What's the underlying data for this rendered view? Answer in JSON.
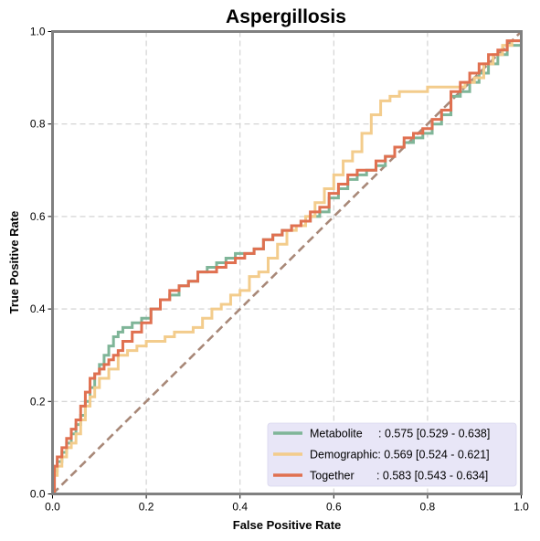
{
  "chart_data": {
    "type": "line",
    "title": "Aspergillosis",
    "xlabel": "False Positive Rate",
    "ylabel": "True Positive Rate",
    "xlim": [
      0,
      1
    ],
    "ylim": [
      0,
      1
    ],
    "xticks": [
      "0.0",
      "0.2",
      "0.4",
      "0.6",
      "0.8",
      "1.0"
    ],
    "yticks": [
      "0.0",
      "0.2",
      "0.4",
      "0.6",
      "0.8",
      "1.0"
    ],
    "grid": true,
    "legend_position": "bottom-right",
    "series": [
      {
        "name": "Metabolite",
        "legend_label": "Metabolite     : 0.575 [0.529 - 0.638]",
        "color": "#7fb598",
        "x": [
          0,
          0.004,
          0.01,
          0.02,
          0.03,
          0.04,
          0.05,
          0.06,
          0.07,
          0.08,
          0.09,
          0.1,
          0.11,
          0.12,
          0.13,
          0.14,
          0.15,
          0.17,
          0.19,
          0.21,
          0.23,
          0.25,
          0.27,
          0.29,
          0.31,
          0.33,
          0.35,
          0.37,
          0.39,
          0.41,
          0.43,
          0.45,
          0.47,
          0.49,
          0.51,
          0.53,
          0.55,
          0.57,
          0.59,
          0.61,
          0.63,
          0.65,
          0.67,
          0.69,
          0.71,
          0.73,
          0.75,
          0.77,
          0.79,
          0.81,
          0.83,
          0.85,
          0.87,
          0.89,
          0.91,
          0.93,
          0.95,
          0.97,
          1.0
        ],
        "y": [
          0,
          0.05,
          0.07,
          0.09,
          0.11,
          0.13,
          0.15,
          0.17,
          0.2,
          0.23,
          0.26,
          0.28,
          0.3,
          0.32,
          0.34,
          0.35,
          0.36,
          0.37,
          0.38,
          0.4,
          0.42,
          0.43,
          0.45,
          0.46,
          0.48,
          0.49,
          0.5,
          0.51,
          0.52,
          0.52,
          0.53,
          0.55,
          0.56,
          0.57,
          0.58,
          0.59,
          0.6,
          0.61,
          0.64,
          0.66,
          0.68,
          0.69,
          0.7,
          0.71,
          0.73,
          0.75,
          0.76,
          0.77,
          0.78,
          0.8,
          0.82,
          0.86,
          0.87,
          0.89,
          0.91,
          0.93,
          0.95,
          0.97,
          1.0
        ]
      },
      {
        "name": "Demographic",
        "legend_label": "Demographic: 0.569 [0.524 - 0.621]",
        "color": "#f3cc8c",
        "x": [
          0,
          0.004,
          0.01,
          0.02,
          0.03,
          0.04,
          0.05,
          0.06,
          0.07,
          0.08,
          0.09,
          0.1,
          0.12,
          0.14,
          0.16,
          0.18,
          0.2,
          0.22,
          0.24,
          0.26,
          0.28,
          0.3,
          0.32,
          0.34,
          0.36,
          0.38,
          0.4,
          0.42,
          0.44,
          0.46,
          0.48,
          0.5,
          0.52,
          0.54,
          0.56,
          0.58,
          0.6,
          0.62,
          0.64,
          0.66,
          0.68,
          0.7,
          0.72,
          0.74,
          0.76,
          0.78,
          0.8,
          0.82,
          0.84,
          0.86,
          0.88,
          0.9,
          0.92,
          0.94,
          0.96,
          0.98,
          1.0
        ],
        "y": [
          0,
          0.04,
          0.06,
          0.08,
          0.1,
          0.11,
          0.13,
          0.16,
          0.19,
          0.21,
          0.23,
          0.25,
          0.27,
          0.3,
          0.31,
          0.32,
          0.33,
          0.33,
          0.34,
          0.35,
          0.35,
          0.36,
          0.38,
          0.4,
          0.41,
          0.43,
          0.44,
          0.47,
          0.48,
          0.51,
          0.54,
          0.57,
          0.58,
          0.6,
          0.63,
          0.66,
          0.69,
          0.72,
          0.74,
          0.78,
          0.82,
          0.85,
          0.86,
          0.87,
          0.87,
          0.87,
          0.88,
          0.88,
          0.88,
          0.88,
          0.89,
          0.9,
          0.93,
          0.95,
          0.97,
          0.98,
          1.0
        ]
      },
      {
        "name": "Together",
        "legend_label": "Together       : 0.583 [0.543 - 0.634]",
        "color": "#e07050",
        "x": [
          0,
          0.004,
          0.01,
          0.02,
          0.03,
          0.04,
          0.05,
          0.06,
          0.07,
          0.08,
          0.09,
          0.1,
          0.11,
          0.12,
          0.13,
          0.14,
          0.15,
          0.17,
          0.19,
          0.21,
          0.23,
          0.25,
          0.27,
          0.29,
          0.31,
          0.33,
          0.35,
          0.37,
          0.39,
          0.41,
          0.43,
          0.45,
          0.47,
          0.49,
          0.51,
          0.53,
          0.55,
          0.57,
          0.59,
          0.61,
          0.63,
          0.65,
          0.67,
          0.69,
          0.71,
          0.73,
          0.75,
          0.77,
          0.79,
          0.81,
          0.83,
          0.85,
          0.87,
          0.89,
          0.91,
          0.93,
          0.95,
          0.97,
          1.0
        ],
        "y": [
          0,
          0.06,
          0.08,
          0.1,
          0.12,
          0.14,
          0.16,
          0.19,
          0.22,
          0.25,
          0.26,
          0.27,
          0.28,
          0.29,
          0.3,
          0.31,
          0.33,
          0.35,
          0.37,
          0.4,
          0.42,
          0.44,
          0.45,
          0.46,
          0.48,
          0.48,
          0.49,
          0.5,
          0.51,
          0.52,
          0.53,
          0.55,
          0.56,
          0.57,
          0.58,
          0.59,
          0.61,
          0.62,
          0.65,
          0.67,
          0.69,
          0.7,
          0.7,
          0.72,
          0.73,
          0.75,
          0.77,
          0.78,
          0.79,
          0.81,
          0.83,
          0.87,
          0.89,
          0.91,
          0.93,
          0.95,
          0.96,
          0.98,
          1.0
        ]
      }
    ],
    "reference_line": {
      "x": [
        0,
        1
      ],
      "y": [
        0,
        1
      ],
      "color": "#a88878",
      "style": "dashed"
    }
  }
}
